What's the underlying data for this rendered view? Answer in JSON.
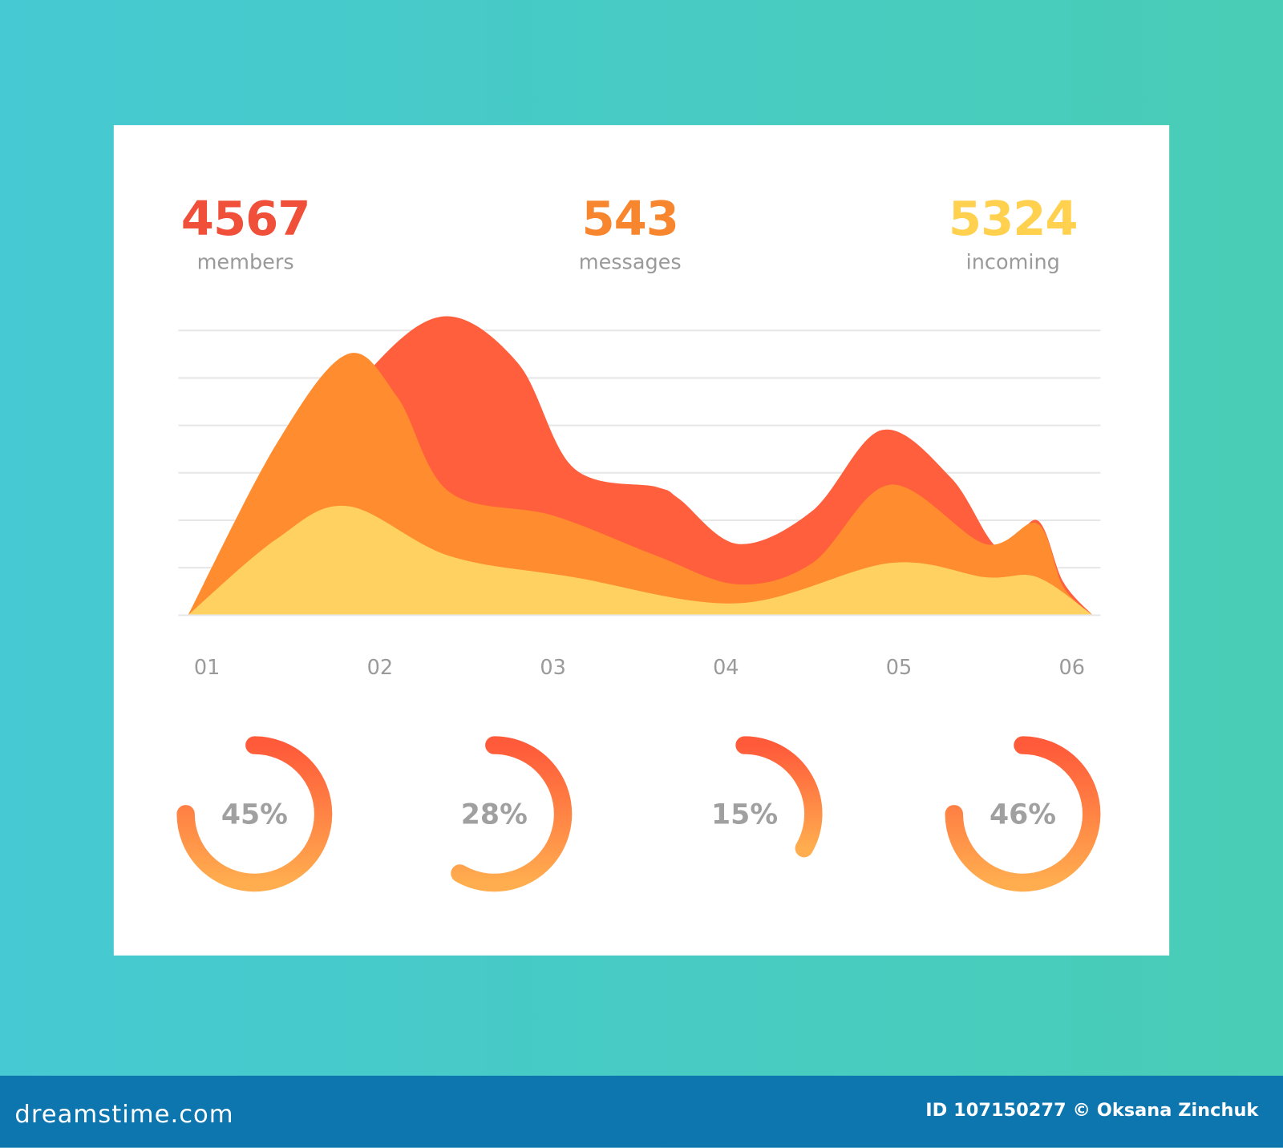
{
  "stats": [
    {
      "value": "4567",
      "label": "members",
      "color": "#f0503a"
    },
    {
      "value": "543",
      "label": "messages",
      "color": "#f7862e"
    },
    {
      "value": "5324",
      "label": "incoming",
      "color": "#ffd14f"
    }
  ],
  "chart_data": {
    "type": "area",
    "categories": [
      "01",
      "02",
      "03",
      "04",
      "05",
      "06"
    ],
    "x": [
      1,
      2,
      3,
      4,
      5,
      6
    ],
    "ylim": [
      0,
      6
    ],
    "grid": true,
    "series": [
      {
        "color": "#ff5f3c",
        "points": [
          [
            0.89,
            0
          ],
          [
            1.5,
            2.8
          ],
          [
            1.95,
            5.2
          ],
          [
            2.38,
            6.3
          ],
          [
            2.8,
            5.3
          ],
          [
            3.12,
            3.1
          ],
          [
            3.6,
            2.7
          ],
          [
            3.73,
            2.45
          ],
          [
            4.07,
            1.5
          ],
          [
            4.5,
            2.2
          ],
          [
            4.9,
            3.9
          ],
          [
            5.3,
            2.9
          ],
          [
            5.58,
            1.4
          ],
          [
            5.8,
            2.0
          ],
          [
            5.95,
            0.7
          ],
          [
            6.12,
            0
          ]
        ]
      },
      {
        "color": "#ff8c2f",
        "points": [
          [
            0.89,
            0
          ],
          [
            1.4,
            3.6
          ],
          [
            1.81,
            5.5
          ],
          [
            2.1,
            4.6
          ],
          [
            2.4,
            2.6
          ],
          [
            3.0,
            2.1
          ],
          [
            3.6,
            1.25
          ],
          [
            4.07,
            0.65
          ],
          [
            4.5,
            1.1
          ],
          [
            4.95,
            2.75
          ],
          [
            5.5,
            1.5
          ],
          [
            5.8,
            1.93
          ],
          [
            5.95,
            0.6
          ],
          [
            6.12,
            0
          ]
        ]
      },
      {
        "color": "#ffd160",
        "points": [
          [
            0.89,
            0
          ],
          [
            1.4,
            1.6
          ],
          [
            1.81,
            2.3
          ],
          [
            2.4,
            1.25
          ],
          [
            3.12,
            0.8
          ],
          [
            4.07,
            0.25
          ],
          [
            4.95,
            1.1
          ],
          [
            5.5,
            0.8
          ],
          [
            5.8,
            0.8
          ],
          [
            6.12,
            0
          ]
        ]
      }
    ],
    "gauges": [
      {
        "label": "45%",
        "value": 45
      },
      {
        "label": "28%",
        "value": 28
      },
      {
        "label": "15%",
        "value": 15
      },
      {
        "label": "46%",
        "value": 46
      }
    ]
  },
  "footer": {
    "logo": "dreamstime.com",
    "credit": "ID 107150277 © Oksana Zinchuk"
  }
}
